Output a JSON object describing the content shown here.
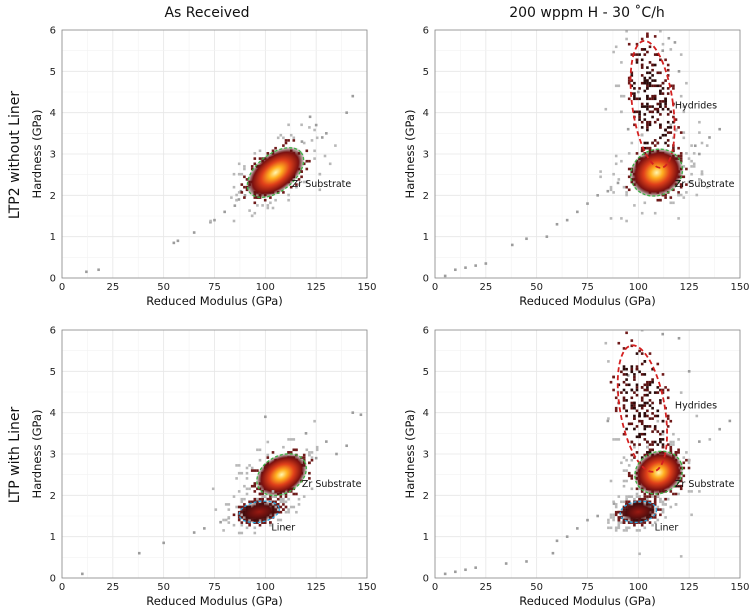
{
  "column_titles": [
    "As Received",
    "200 wppm H - 30 ˚C/h"
  ],
  "row_titles": [
    "LTP2 without Liner",
    "LTP with Liner"
  ],
  "colors": {
    "heat_high": "#fff3a0",
    "heat_mid": "#e8431b",
    "heat_low": "#4a0d0d",
    "sparse": "#9a9a9a",
    "zr": "#3cb043",
    "hydride": "#d42020",
    "liner": "#2aa8e0"
  },
  "chart_data": [
    {
      "type": "heatmap",
      "panel": "top-left",
      "xlabel": "Reduced Modulus (GPa)",
      "ylabel": "Hardness (GPa)",
      "xlim": [
        0,
        150
      ],
      "ylim": [
        0,
        6
      ],
      "xticks": [
        0,
        25,
        50,
        75,
        100,
        125,
        150
      ],
      "yticks": [
        0,
        1,
        2,
        3,
        4,
        5,
        6
      ],
      "grid": true,
      "clusters": [
        {
          "name": "Zr Substrate",
          "center": [
            105,
            2.55
          ],
          "semi_axis_x": 16,
          "semi_axis_y": 0.45,
          "angle_deg": 38,
          "color": "zr",
          "label_at": [
            113,
            2.2
          ]
        }
      ],
      "scatter": [
        [
          12,
          0.15
        ],
        [
          18,
          0.2
        ],
        [
          55,
          0.85
        ],
        [
          57,
          0.9
        ],
        [
          65,
          1.1
        ],
        [
          73,
          1.35
        ],
        [
          75,
          1.4
        ],
        [
          80,
          1.6
        ],
        [
          85,
          1.75
        ],
        [
          87,
          1.9
        ],
        [
          90,
          2.0
        ],
        [
          88,
          2.1
        ],
        [
          92,
          2.2
        ],
        [
          125,
          3.7
        ],
        [
          122,
          3.9
        ],
        [
          140,
          4.0
        ],
        [
          143,
          4.4
        ],
        [
          130,
          3.5
        ],
        [
          128,
          3.4
        ],
        [
          118,
          3.3
        ]
      ]
    },
    {
      "type": "heatmap",
      "panel": "top-right",
      "xlabel": "Reduced Modulus (GPa)",
      "ylabel": "Hardness (GPa)",
      "xlim": [
        0,
        150
      ],
      "ylim": [
        0,
        6
      ],
      "xticks": [
        0,
        25,
        50,
        75,
        100,
        125,
        150
      ],
      "yticks": [
        0,
        1,
        2,
        3,
        4,
        5,
        6
      ],
      "grid": true,
      "clusters": [
        {
          "name": "Hydrides",
          "center": [
            107,
            4.2
          ],
          "semi_axis_x": 10,
          "semi_axis_y": 1.55,
          "angle_deg": 8,
          "color": "hydride",
          "label_at": [
            118,
            4.1
          ]
        },
        {
          "name": "Zr Substrate",
          "center": [
            109,
            2.55
          ],
          "semi_axis_x": 13,
          "semi_axis_y": 0.55,
          "angle_deg": 25,
          "color": "zr",
          "label_at": [
            118,
            2.2
          ]
        }
      ],
      "scatter": [
        [
          5,
          0.05
        ],
        [
          10,
          0.2
        ],
        [
          15,
          0.25
        ],
        [
          20,
          0.3
        ],
        [
          25,
          0.35
        ],
        [
          38,
          0.8
        ],
        [
          45,
          0.95
        ],
        [
          55,
          1.0
        ],
        [
          60,
          1.3
        ],
        [
          65,
          1.4
        ],
        [
          70,
          1.6
        ],
        [
          75,
          1.8
        ],
        [
          80,
          2.0
        ],
        [
          85,
          2.1
        ],
        [
          90,
          2.3
        ],
        [
          130,
          3.0
        ],
        [
          140,
          3.6
        ],
        [
          135,
          3.4
        ],
        [
          128,
          3.2
        ],
        [
          120,
          5.0
        ],
        [
          118,
          5.7
        ],
        [
          115,
          5.8
        ],
        [
          112,
          5.5
        ],
        [
          100,
          4.5
        ],
        [
          95,
          3.6
        ]
      ]
    },
    {
      "type": "heatmap",
      "panel": "bottom-left",
      "xlabel": "Reduced Modulus (GPa)",
      "ylabel": "Hardness (GPa)",
      "xlim": [
        0,
        150
      ],
      "ylim": [
        0,
        6
      ],
      "xticks": [
        0,
        25,
        50,
        75,
        100,
        125,
        150
      ],
      "yticks": [
        0,
        1,
        2,
        3,
        4,
        5,
        6
      ],
      "grid": true,
      "clusters": [
        {
          "name": "Zr Substrate",
          "center": [
            108,
            2.5
          ],
          "semi_axis_x": 13,
          "semi_axis_y": 0.45,
          "angle_deg": 30,
          "color": "zr",
          "label_at": [
            118,
            2.2
          ]
        },
        {
          "name": "Liner",
          "center": [
            97,
            1.6
          ],
          "semi_axis_x": 10,
          "semi_axis_y": 0.25,
          "angle_deg": 10,
          "color": "liner",
          "label_at": [
            103,
            1.15
          ]
        }
      ],
      "scatter": [
        [
          10,
          0.1
        ],
        [
          38,
          0.6
        ],
        [
          50,
          0.85
        ],
        [
          65,
          1.1
        ],
        [
          70,
          1.2
        ],
        [
          78,
          1.35
        ],
        [
          82,
          1.45
        ],
        [
          130,
          3.3
        ],
        [
          135,
          3.0
        ],
        [
          140,
          3.2
        ],
        [
          143,
          4.0
        ],
        [
          147,
          3.95
        ],
        [
          125,
          2.9
        ],
        [
          100,
          3.9
        ],
        [
          120,
          3.5
        ]
      ]
    },
    {
      "type": "heatmap",
      "panel": "bottom-right",
      "xlabel": "Reduced Modulus (GPa)",
      "ylabel": "Hardness (GPa)",
      "xlim": [
        0,
        150
      ],
      "ylim": [
        0,
        6
      ],
      "xticks": [
        0,
        25,
        50,
        75,
        100,
        125,
        150
      ],
      "yticks": [
        0,
        1,
        2,
        3,
        4,
        5,
        6
      ],
      "grid": true,
      "clusters": [
        {
          "name": "Hydrides",
          "center": [
            102,
            4.1
          ],
          "semi_axis_x": 11,
          "semi_axis_y": 1.55,
          "angle_deg": 10,
          "color": "hydride",
          "label_at": [
            118,
            4.1
          ]
        },
        {
          "name": "Zr Substrate",
          "center": [
            110,
            2.55
          ],
          "semi_axis_x": 12,
          "semi_axis_y": 0.5,
          "angle_deg": 25,
          "color": "zr",
          "label_at": [
            118,
            2.2
          ]
        },
        {
          "name": "Liner",
          "center": [
            100,
            1.6
          ],
          "semi_axis_x": 9,
          "semi_axis_y": 0.25,
          "angle_deg": 8,
          "color": "liner",
          "label_at": [
            108,
            1.15
          ]
        }
      ],
      "scatter": [
        [
          5,
          0.1
        ],
        [
          10,
          0.15
        ],
        [
          15,
          0.2
        ],
        [
          20,
          0.25
        ],
        [
          35,
          0.35
        ],
        [
          45,
          0.4
        ],
        [
          58,
          0.6
        ],
        [
          60,
          0.9
        ],
        [
          65,
          1.0
        ],
        [
          70,
          1.2
        ],
        [
          75,
          1.4
        ],
        [
          80,
          1.5
        ],
        [
          88,
          1.8
        ],
        [
          130,
          3.3
        ],
        [
          140,
          3.6
        ],
        [
          145,
          3.8
        ],
        [
          125,
          5.0
        ],
        [
          120,
          5.8
        ],
        [
          112,
          5.9
        ],
        [
          95,
          4.9
        ],
        [
          90,
          4.5
        ],
        [
          85,
          3.8
        ]
      ]
    }
  ]
}
